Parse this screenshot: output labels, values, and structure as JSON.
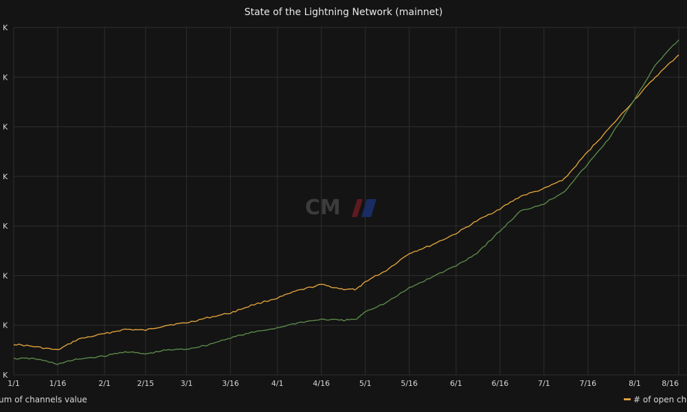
{
  "title": "State of the Lightning Network (mainnet)",
  "colors": {
    "channels_value": "#5c8a4a",
    "open_channels": "#e0a33c",
    "grid": "#2f2f2f",
    "background": "#141414",
    "text": "#d8d9da"
  },
  "legend": {
    "left_label": "um of channels value",
    "right_label": "# of open cha"
  },
  "watermark": {
    "text": "CM"
  },
  "chart_data": {
    "type": "line",
    "title": "State of the Lightning Network (mainnet)",
    "x_ticks": [
      "1/1",
      "1/16",
      "2/1",
      "2/15",
      "3/1",
      "3/16",
      "4/1",
      "4/16",
      "5/1",
      "5/16",
      "6/1",
      "6/16",
      "7/1",
      "7/16",
      "8/1",
      "8/16"
    ],
    "y_ticks": [
      "K",
      "K",
      "K",
      "K",
      "K",
      "K",
      "K",
      "K"
    ],
    "ylim": [
      0,
      7
    ],
    "grid": true,
    "legend_placement": "bottom",
    "series": [
      {
        "name": "# of open cha",
        "color": "#e0a33c",
        "points": [
          [
            "1/1",
            0.62
          ],
          [
            "1/8",
            0.57
          ],
          [
            "1/16",
            0.5
          ],
          [
            "1/23",
            0.72
          ],
          [
            "2/1",
            0.83
          ],
          [
            "2/8",
            0.92
          ],
          [
            "2/15",
            0.9
          ],
          [
            "2/22",
            1.0
          ],
          [
            "3/1",
            1.05
          ],
          [
            "3/8",
            1.15
          ],
          [
            "3/16",
            1.25
          ],
          [
            "3/23",
            1.4
          ],
          [
            "4/1",
            1.55
          ],
          [
            "4/8",
            1.7
          ],
          [
            "4/16",
            1.82
          ],
          [
            "4/23",
            1.73
          ],
          [
            "4/28",
            1.72
          ],
          [
            "5/1",
            1.88
          ],
          [
            "5/8",
            2.1
          ],
          [
            "5/16",
            2.45
          ],
          [
            "5/23",
            2.6
          ],
          [
            "6/1",
            2.85
          ],
          [
            "6/8",
            3.1
          ],
          [
            "6/16",
            3.35
          ],
          [
            "6/23",
            3.6
          ],
          [
            "7/1",
            3.75
          ],
          [
            "7/8",
            3.95
          ],
          [
            "7/16",
            4.5
          ],
          [
            "7/23",
            4.95
          ],
          [
            "8/1",
            5.55
          ],
          [
            "8/8",
            6.0
          ],
          [
            "8/16",
            6.45
          ]
        ]
      },
      {
        "name": "um of channels value",
        "color": "#5c8a4a",
        "points": [
          [
            "1/1",
            0.33
          ],
          [
            "1/8",
            0.33
          ],
          [
            "1/16",
            0.22
          ],
          [
            "1/23",
            0.32
          ],
          [
            "2/1",
            0.38
          ],
          [
            "2/8",
            0.47
          ],
          [
            "2/15",
            0.42
          ],
          [
            "2/22",
            0.5
          ],
          [
            "3/1",
            0.52
          ],
          [
            "3/8",
            0.6
          ],
          [
            "3/16",
            0.75
          ],
          [
            "3/23",
            0.85
          ],
          [
            "4/1",
            0.95
          ],
          [
            "4/8",
            1.05
          ],
          [
            "4/16",
            1.12
          ],
          [
            "4/23",
            1.1
          ],
          [
            "4/28",
            1.12
          ],
          [
            "5/1",
            1.28
          ],
          [
            "5/8",
            1.45
          ],
          [
            "5/16",
            1.75
          ],
          [
            "5/23",
            1.95
          ],
          [
            "6/1",
            2.2
          ],
          [
            "6/8",
            2.45
          ],
          [
            "6/16",
            2.9
          ],
          [
            "6/23",
            3.3
          ],
          [
            "7/1",
            3.45
          ],
          [
            "7/8",
            3.7
          ],
          [
            "7/16",
            4.25
          ],
          [
            "7/23",
            4.75
          ],
          [
            "8/1",
            5.55
          ],
          [
            "8/8",
            6.25
          ],
          [
            "8/16",
            6.75
          ]
        ]
      }
    ]
  }
}
